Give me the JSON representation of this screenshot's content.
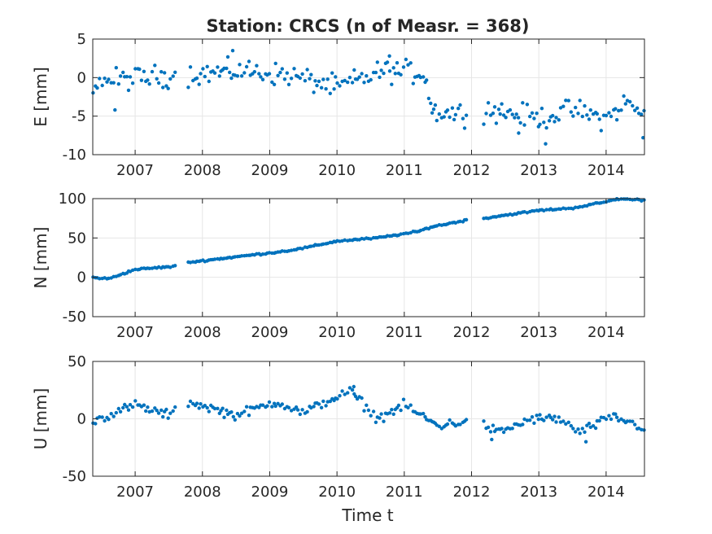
{
  "chart_data": {
    "type": "scatter",
    "title": "Station: CRCS (n of Measr. = 368)",
    "xlabel": "Time t",
    "x_ticks": [
      "2007",
      "2008",
      "2009",
      "2010",
      "2011",
      "2012",
      "2013",
      "2014"
    ],
    "xlim": [
      2006.37,
      2014.57
    ],
    "grid": true,
    "marker_color": "#0072BD",
    "gaps": [
      [
        2007.62,
        2007.78
      ],
      [
        2011.95,
        2012.18
      ]
    ],
    "panels": [
      {
        "name": "E",
        "ylabel": "E [mm]",
        "ylim": [
          -10,
          5
        ],
        "y_ticks": [
          "5",
          "0",
          "-5",
          "-10"
        ],
        "tick_values": [
          5,
          0,
          -5,
          -10
        ],
        "trend": [
          [
            2006.37,
            -0.5
          ],
          [
            2008.6,
            0.9
          ],
          [
            2009.3,
            0.3
          ],
          [
            2010.0,
            -1.3
          ],
          [
            2010.7,
            0.9
          ],
          [
            2011.3,
            0.6
          ],
          [
            2011.42,
            -4.3
          ],
          [
            2011.95,
            -4.8
          ],
          [
            2012.18,
            -4.0
          ],
          [
            2013.0,
            -5.3
          ],
          [
            2013.5,
            -4.2
          ],
          [
            2014.0,
            -5.4
          ],
          [
            2014.3,
            -3.2
          ],
          [
            2014.57,
            -5.0
          ]
        ],
        "noise": 1.25,
        "spikes": [
          [
            2006.7,
            -4.2
          ],
          [
            2008.45,
            3.5
          ],
          [
            2010.78,
            2.8
          ],
          [
            2012.7,
            -7.2
          ],
          [
            2013.1,
            -8.6
          ],
          [
            2014.55,
            -7.8
          ]
        ]
      },
      {
        "name": "N",
        "ylabel": "N [mm]",
        "ylim": [
          -50,
          100
        ],
        "y_ticks": [
          "100",
          "50",
          "0",
          "-50"
        ],
        "tick_values": [
          100,
          50,
          0,
          -50
        ],
        "trend": [
          [
            2006.37,
            0
          ],
          [
            2006.6,
            -2
          ],
          [
            2007.0,
            10
          ],
          [
            2007.6,
            14
          ],
          [
            2007.8,
            19
          ],
          [
            2008.5,
            26
          ],
          [
            2009.2,
            33
          ],
          [
            2009.5,
            37
          ],
          [
            2010.0,
            46
          ],
          [
            2010.6,
            50
          ],
          [
            2011.2,
            58
          ],
          [
            2011.4,
            64
          ],
          [
            2011.95,
            73
          ],
          [
            2012.18,
            75
          ],
          [
            2012.5,
            79
          ],
          [
            2013.0,
            85
          ],
          [
            2013.5,
            88
          ],
          [
            2014.0,
            96
          ],
          [
            2014.2,
            100
          ],
          [
            2014.57,
            98
          ]
        ],
        "noise": 0.9,
        "spikes": []
      },
      {
        "name": "U",
        "ylabel": "U [mm]",
        "ylim": [
          -50,
          50
        ],
        "y_ticks": [
          "50",
          "0",
          "-50"
        ],
        "tick_values": [
          50,
          0,
          -50
        ],
        "trend": [
          [
            2006.37,
            -2
          ],
          [
            2007.0,
            12
          ],
          [
            2007.5,
            3
          ],
          [
            2007.8,
            15
          ],
          [
            2008.5,
            3
          ],
          [
            2009.1,
            15
          ],
          [
            2009.5,
            5
          ],
          [
            2009.8,
            14
          ],
          [
            2010.2,
            24
          ],
          [
            2010.6,
            0
          ],
          [
            2011.0,
            12
          ],
          [
            2011.5,
            -6
          ],
          [
            2011.95,
            -2
          ],
          [
            2012.18,
            -5
          ],
          [
            2012.4,
            -12
          ],
          [
            2012.9,
            0
          ],
          [
            2013.3,
            0
          ],
          [
            2013.6,
            -12
          ],
          [
            2014.1,
            2
          ],
          [
            2014.57,
            -8
          ]
        ],
        "noise": 3.5,
        "spikes": [
          [
            2012.3,
            -18
          ],
          [
            2013.7,
            -20
          ],
          [
            2010.25,
            28
          ]
        ]
      }
    ]
  }
}
